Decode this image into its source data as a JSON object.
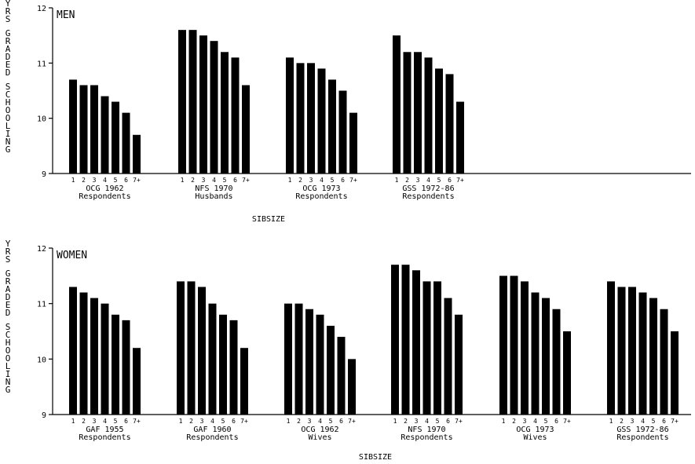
{
  "chart_data": [
    {
      "type": "bar",
      "panel_label": "MEN",
      "ylabel": "YRS GRADED SCHOOLING",
      "xlabel": "SIBSIZE",
      "ylim": [
        9,
        12
      ],
      "yticks": [
        "9",
        "10",
        "11",
        "12"
      ],
      "categories": [
        "1",
        "2",
        "3",
        "4",
        "5",
        "6",
        "7+"
      ],
      "groups": [
        {
          "name": "OCG 1962",
          "sub": "Respondents",
          "values": [
            10.7,
            10.6,
            10.6,
            10.4,
            10.3,
            10.1,
            9.7
          ]
        },
        {
          "name": "NFS 1970",
          "sub": "Husbands",
          "values": [
            11.6,
            11.6,
            11.5,
            11.4,
            11.2,
            11.1,
            10.6
          ]
        },
        {
          "name": "OCG 1973",
          "sub": "Respondents",
          "values": [
            11.1,
            11.0,
            11.0,
            10.9,
            10.7,
            10.5,
            10.1
          ]
        },
        {
          "name": "GSS 1972-86",
          "sub": "Respondents",
          "values": [
            11.5,
            11.2,
            11.2,
            11.1,
            10.9,
            10.8,
            10.3
          ]
        }
      ]
    },
    {
      "type": "bar",
      "panel_label": "WOMEN",
      "ylabel": "YRS GRADED SCHOOLING",
      "xlabel": "SIBSIZE",
      "ylim": [
        9,
        12
      ],
      "yticks": [
        "9",
        "10",
        "11",
        "12"
      ],
      "categories": [
        "1",
        "2",
        "3",
        "4",
        "5",
        "6",
        "7+"
      ],
      "groups": [
        {
          "name": "GAF 1955",
          "sub": "Respondents",
          "values": [
            11.3,
            11.2,
            11.1,
            11.0,
            10.8,
            10.7,
            10.2
          ]
        },
        {
          "name": "GAF 1960",
          "sub": "Respondents",
          "values": [
            11.4,
            11.4,
            11.3,
            11.0,
            10.8,
            10.7,
            10.2
          ]
        },
        {
          "name": "OCG 1962",
          "sub": "Wives",
          "values": [
            11.0,
            11.0,
            10.9,
            10.8,
            10.6,
            10.4,
            10.0
          ]
        },
        {
          "name": "NFS 1970",
          "sub": "Respondents",
          "values": [
            11.7,
            11.7,
            11.6,
            11.4,
            11.4,
            11.1,
            10.8
          ]
        },
        {
          "name": "OCG 1973",
          "sub": "Wives",
          "values": [
            11.5,
            11.5,
            11.4,
            11.2,
            11.1,
            10.9,
            10.5
          ]
        },
        {
          "name": "GSS 1972-86",
          "sub": "Respondents",
          "values": [
            11.4,
            11.3,
            11.3,
            11.2,
            11.1,
            10.9,
            10.5
          ]
        }
      ]
    }
  ]
}
